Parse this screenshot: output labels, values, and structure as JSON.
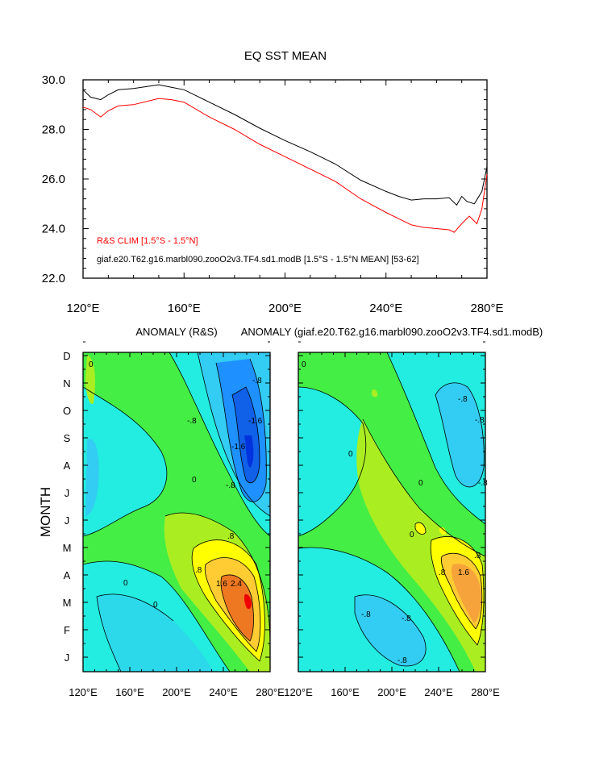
{
  "chart_data": [
    {
      "type": "line",
      "title": "EQ SST MEAN",
      "xlabel": "",
      "ylabel": "",
      "xlim": [
        120,
        280
      ],
      "ylim": [
        22,
        30
      ],
      "x_ticks": [
        120,
        160,
        200,
        240,
        280
      ],
      "x_tick_labels": [
        "120°E",
        "160°E",
        "200°E",
        "240°E",
        "280°E"
      ],
      "y_ticks": [
        22,
        24,
        26,
        28,
        30
      ],
      "y_tick_labels": [
        "22.0",
        "24.0",
        "26.0",
        "28.0",
        "30.0"
      ],
      "series": [
        {
          "name": "giaf.e20.T62.g16.marbl090.zooO2v3.TF4.sd1.modB [1.5°S - 1.5°N MEAN] [53-62]",
          "color": "#000000",
          "x": [
            120,
            123,
            127,
            130,
            134,
            140,
            150,
            155,
            160,
            170,
            180,
            190,
            200,
            210,
            220,
            230,
            240,
            245,
            250,
            255,
            260,
            265,
            268,
            270,
            272,
            275,
            278,
            280
          ],
          "values": [
            29.6,
            29.3,
            29.2,
            29.4,
            29.6,
            29.65,
            29.8,
            29.7,
            29.6,
            29.1,
            28.6,
            28.05,
            27.55,
            27.1,
            26.6,
            25.95,
            25.5,
            25.3,
            25.15,
            25.2,
            25.2,
            25.25,
            24.95,
            25.3,
            25.1,
            25.0,
            25.5,
            26.5
          ]
        },
        {
          "name": "R&S CLIM [1.5°S - 1.5°N]",
          "color": "#ff0000",
          "x": [
            120,
            123,
            127,
            130,
            134,
            140,
            150,
            155,
            160,
            170,
            180,
            190,
            200,
            210,
            220,
            230,
            240,
            245,
            250,
            255,
            260,
            265,
            267,
            270,
            273,
            276,
            278,
            280
          ],
          "values": [
            28.9,
            28.8,
            28.5,
            28.75,
            28.95,
            29.0,
            29.25,
            29.2,
            29.1,
            28.5,
            28.0,
            27.4,
            26.9,
            26.4,
            25.9,
            25.2,
            24.65,
            24.4,
            24.15,
            24.05,
            24.0,
            23.95,
            23.85,
            24.2,
            24.5,
            24.2,
            24.8,
            26.2
          ]
        }
      ],
      "legend": [
        {
          "label": "R&S CLIM [1.5°S - 1.5°N]",
          "color": "#ff0000"
        },
        {
          "label": "giaf.e20.T62.g16.marbl090.zooO2v3.TF4.sd1.modB [1.5°S - 1.5°N MEAN] [53-62]",
          "color": "#000000"
        }
      ],
      "legend_position": "bottom-left"
    },
    {
      "type": "heatmap",
      "title": "ANOMALY (R&S)",
      "xlabel": "",
      "ylabel": "MONTH",
      "xlim": [
        120,
        280
      ],
      "x_ticks": [
        120,
        160,
        200,
        240,
        280
      ],
      "x_tick_labels": [
        "120°E",
        "160°E",
        "200°E",
        "240°E",
        "280°E"
      ],
      "y_tick_labels": [
        "J",
        "F",
        "M",
        "A",
        "M",
        "J",
        "J",
        "A",
        "S",
        "O",
        "N",
        "D"
      ],
      "contour_labels": [
        ".8",
        "1.6",
        "2.4",
        "-.8",
        "-1.6",
        "0"
      ],
      "colors": {
        "neg_strong": "#0033dd",
        "neg": "#1e90ff",
        "neg_light": "#33ccf2",
        "near_zero_neg": "#22ede0",
        "near_zero_pos": "#44ee44",
        "pos_light": "#aaee22",
        "pos": "#ffff00",
        "pos_strong": "#ffcc33",
        "pos_max": "#ee7722",
        "peak": "#ee0000"
      }
    },
    {
      "type": "heatmap",
      "title": "ANOMALY (giaf.e20.T62.g16.marbl090.zooO2v3.TF4.sd1.modB)",
      "xlabel": "",
      "ylabel": "",
      "xlim": [
        120,
        280
      ],
      "x_ticks": [
        120,
        160,
        200,
        240,
        280
      ],
      "x_tick_labels": [
        "120°E",
        "160°E",
        "200°E",
        "240°E",
        "280°E"
      ],
      "contour_labels": [
        ".8",
        "1.6",
        "-.8",
        "0"
      ]
    }
  ]
}
